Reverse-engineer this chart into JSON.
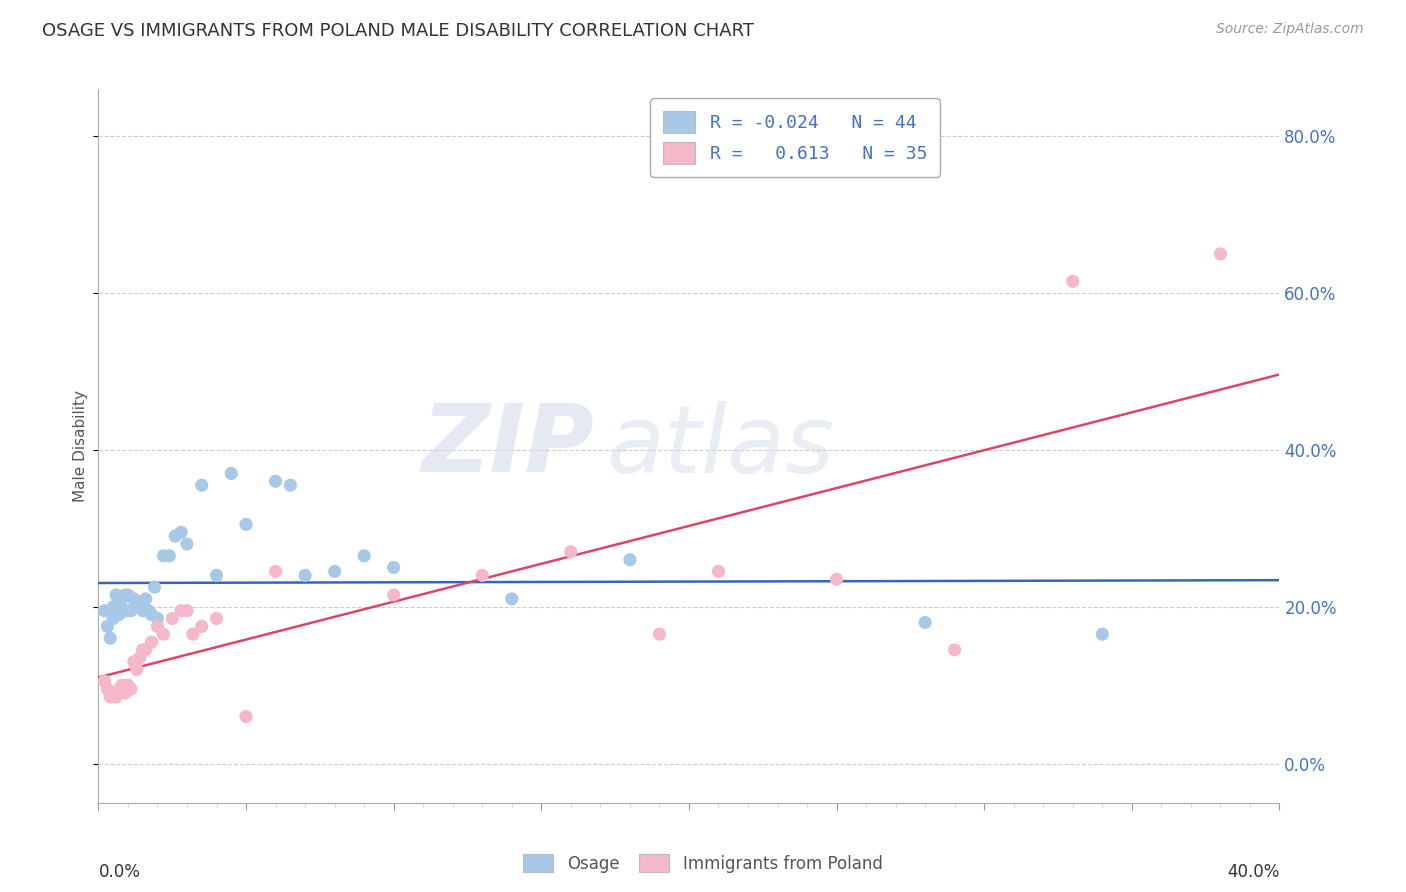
{
  "title": "OSAGE VS IMMIGRANTS FROM POLAND MALE DISABILITY CORRELATION CHART",
  "source": "Source: ZipAtlas.com",
  "ylabel": "Male Disability",
  "xlim": [
    0.0,
    0.4
  ],
  "ylim": [
    -0.05,
    0.86
  ],
  "ytick_vals": [
    0.0,
    0.2,
    0.4,
    0.6,
    0.8
  ],
  "osage_color": "#a8c8e8",
  "poland_color": "#f4b8c8",
  "osage_line_color": "#3366bb",
  "poland_line_color": "#dd4466",
  "watermark_zip": "ZIP",
  "watermark_atlas": "atlas",
  "legend_line1": "R = -0.024   N = 44",
  "legend_line2": "R =   0.613   N = 35",
  "osage_x": [
    0.002,
    0.003,
    0.004,
    0.005,
    0.005,
    0.006,
    0.006,
    0.007,
    0.007,
    0.008,
    0.008,
    0.009,
    0.009,
    0.01,
    0.01,
    0.011,
    0.012,
    0.013,
    0.014,
    0.015,
    0.016,
    0.017,
    0.018,
    0.019,
    0.02,
    0.022,
    0.024,
    0.026,
    0.028,
    0.03,
    0.035,
    0.04,
    0.045,
    0.05,
    0.06,
    0.065,
    0.07,
    0.08,
    0.09,
    0.1,
    0.14,
    0.18,
    0.28,
    0.34
  ],
  "osage_y": [
    0.195,
    0.175,
    0.16,
    0.185,
    0.2,
    0.195,
    0.215,
    0.19,
    0.205,
    0.195,
    0.21,
    0.215,
    0.195,
    0.195,
    0.215,
    0.195,
    0.21,
    0.2,
    0.205,
    0.195,
    0.21,
    0.195,
    0.19,
    0.225,
    0.185,
    0.265,
    0.265,
    0.29,
    0.295,
    0.28,
    0.355,
    0.24,
    0.37,
    0.305,
    0.36,
    0.355,
    0.24,
    0.245,
    0.265,
    0.25,
    0.21,
    0.26,
    0.18,
    0.165
  ],
  "poland_x": [
    0.002,
    0.003,
    0.004,
    0.005,
    0.006,
    0.007,
    0.008,
    0.009,
    0.01,
    0.011,
    0.012,
    0.013,
    0.014,
    0.015,
    0.016,
    0.018,
    0.02,
    0.022,
    0.025,
    0.028,
    0.03,
    0.032,
    0.035,
    0.04,
    0.05,
    0.06,
    0.1,
    0.13,
    0.16,
    0.19,
    0.21,
    0.25,
    0.29,
    0.33,
    0.38
  ],
  "poland_y": [
    0.105,
    0.095,
    0.085,
    0.09,
    0.085,
    0.095,
    0.1,
    0.09,
    0.1,
    0.095,
    0.13,
    0.12,
    0.135,
    0.145,
    0.145,
    0.155,
    0.175,
    0.165,
    0.185,
    0.195,
    0.195,
    0.165,
    0.175,
    0.185,
    0.06,
    0.245,
    0.215,
    0.24,
    0.27,
    0.165,
    0.245,
    0.235,
    0.145,
    0.615,
    0.65
  ]
}
